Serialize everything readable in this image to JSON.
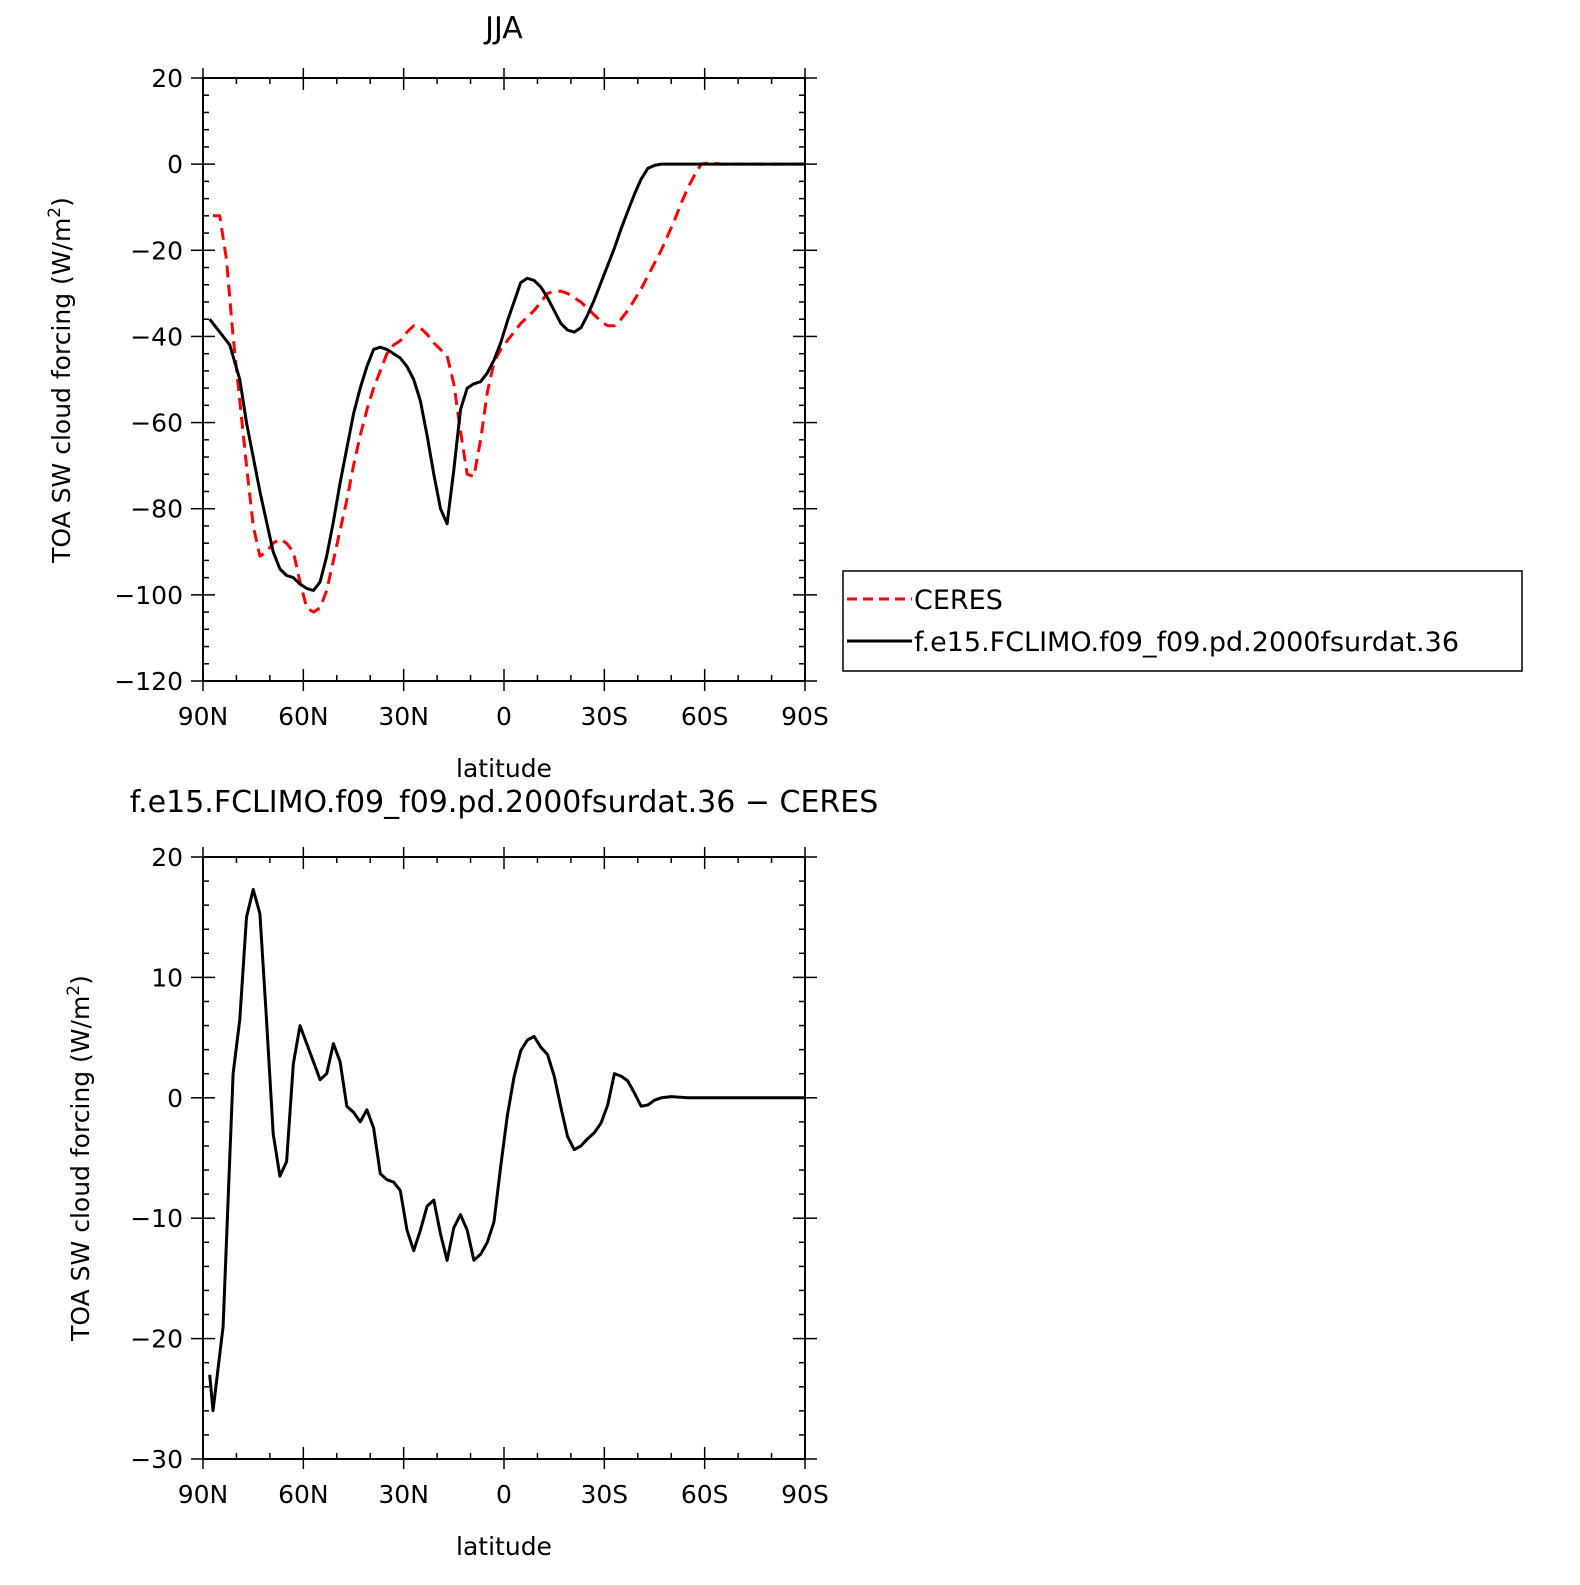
{
  "chart_data": [
    {
      "type": "line",
      "title": "JJA",
      "xlabel": "latitude",
      "ylabel": "TOA SW cloud forcing (W/m²)",
      "ylabel_main": "TOA SW cloud forcing (W/m",
      "ylabel_sup": "2",
      "ylabel_end": ")",
      "xlim": [
        90,
        -90
      ],
      "ylim": [
        -120,
        20
      ],
      "x_ticks": [
        90,
        60,
        30,
        0,
        -30,
        -60,
        -90
      ],
      "x_tick_labels": [
        "90N",
        "60N",
        "30N",
        "0",
        "30S",
        "60S",
        "90S"
      ],
      "y_ticks": [
        20,
        0,
        -20,
        -40,
        -60,
        -80,
        -100,
        -120
      ],
      "y_tick_labels": [
        "20",
        "0",
        "−20",
        "−40",
        "−60",
        "−80",
        "−100",
        "−120"
      ],
      "legend_position": "right",
      "series": [
        {
          "name": "CERES",
          "style": "dashed",
          "color": "#ff0000",
          "points": [
            [
              87,
              -12
            ],
            [
              85,
              -12
            ],
            [
              83,
              -22
            ],
            [
              81,
              -40
            ],
            [
              79,
              -55
            ],
            [
              77,
              -70
            ],
            [
              75,
              -84
            ],
            [
              73,
              -91
            ],
            [
              71,
              -90
            ],
            [
              69,
              -88
            ],
            [
              67,
              -87
            ],
            [
              65,
              -88
            ],
            [
              63,
              -90
            ],
            [
              61,
              -97
            ],
            [
              59,
              -103
            ],
            [
              57,
              -104
            ],
            [
              55,
              -103
            ],
            [
              53,
              -99
            ],
            [
              51,
              -92
            ],
            [
              49,
              -85
            ],
            [
              47,
              -78
            ],
            [
              45,
              -70
            ],
            [
              43,
              -63
            ],
            [
              41,
              -57
            ],
            [
              39,
              -52
            ],
            [
              37,
              -48
            ],
            [
              35,
              -44
            ],
            [
              33,
              -42
            ],
            [
              31,
              -41
            ],
            [
              29,
              -39
            ],
            [
              27,
              -37.5
            ],
            [
              25,
              -38
            ],
            [
              23,
              -39.5
            ],
            [
              21,
              -41.5
            ],
            [
              19,
              -43
            ],
            [
              17,
              -44.5
            ],
            [
              15,
              -51
            ],
            [
              13,
              -62
            ],
            [
              11,
              -72
            ],
            [
              9,
              -72.5
            ],
            [
              7,
              -64
            ],
            [
              5,
              -53
            ],
            [
              3,
              -46
            ],
            [
              1,
              -43
            ],
            [
              -1,
              -41
            ],
            [
              -3,
              -39
            ],
            [
              -5,
              -37
            ],
            [
              -7,
              -35.5
            ],
            [
              -9,
              -34
            ],
            [
              -11,
              -32
            ],
            [
              -13,
              -30
            ],
            [
              -15,
              -29.5
            ],
            [
              -17,
              -29.5
            ],
            [
              -19,
              -30
            ],
            [
              -21,
              -31
            ],
            [
              -23,
              -32
            ],
            [
              -25,
              -33.5
            ],
            [
              -27,
              -35
            ],
            [
              -29,
              -36.5
            ],
            [
              -31,
              -37.5
            ],
            [
              -33,
              -37.5
            ],
            [
              -35,
              -36
            ],
            [
              -37,
              -34
            ],
            [
              -39,
              -31.5
            ],
            [
              -41,
              -29
            ],
            [
              -43,
              -26
            ],
            [
              -45,
              -23
            ],
            [
              -47,
              -20
            ],
            [
              -49,
              -16.5
            ],
            [
              -51,
              -13
            ],
            [
              -53,
              -9
            ],
            [
              -55,
              -5.5
            ],
            [
              -57,
              -2.5
            ],
            [
              -59,
              0
            ],
            [
              -61,
              0.3
            ],
            [
              -63,
              0.2
            ],
            [
              -65,
              0
            ],
            [
              -70,
              0
            ],
            [
              -75,
              0
            ],
            [
              -80,
              0
            ],
            [
              -85,
              0
            ],
            [
              -90,
              0
            ]
          ]
        },
        {
          "name": "f.e15.FCLIMO.f09_f09.pd.2000fsurdat.36",
          "style": "solid",
          "color": "#000000",
          "points": [
            [
              88,
              -36
            ],
            [
              85,
              -39
            ],
            [
              82,
              -42
            ],
            [
              79,
              -50
            ],
            [
              77,
              -60
            ],
            [
              75,
              -68
            ],
            [
              73,
              -76
            ],
            [
              71,
              -83
            ],
            [
              69,
              -90
            ],
            [
              67,
              -94
            ],
            [
              65,
              -95.5
            ],
            [
              63,
              -96
            ],
            [
              61,
              -97.5
            ],
            [
              59,
              -98.5
            ],
            [
              57,
              -99
            ],
            [
              55,
              -97
            ],
            [
              53,
              -91
            ],
            [
              51,
              -83
            ],
            [
              49,
              -74
            ],
            [
              47,
              -66
            ],
            [
              45,
              -58
            ],
            [
              43,
              -52
            ],
            [
              41,
              -47
            ],
            [
              39,
              -43
            ],
            [
              37,
              -42.5
            ],
            [
              35,
              -43
            ],
            [
              33,
              -44
            ],
            [
              31,
              -45
            ],
            [
              29,
              -47
            ],
            [
              27,
              -50
            ],
            [
              25,
              -55
            ],
            [
              23,
              -63
            ],
            [
              21,
              -72
            ],
            [
              19,
              -80
            ],
            [
              17,
              -83.5
            ],
            [
              15,
              -71
            ],
            [
              13,
              -57
            ],
            [
              11,
              -52
            ],
            [
              9,
              -51
            ],
            [
              7,
              -50.5
            ],
            [
              5,
              -48.5
            ],
            [
              3,
              -45.5
            ],
            [
              1,
              -41.5
            ],
            [
              -1,
              -36.5
            ],
            [
              -3,
              -32
            ],
            [
              -5,
              -27.5
            ],
            [
              -7,
              -26.5
            ],
            [
              -9,
              -27
            ],
            [
              -11,
              -28.5
            ],
            [
              -13,
              -31
            ],
            [
              -15,
              -34
            ],
            [
              -17,
              -37
            ],
            [
              -19,
              -38.5
            ],
            [
              -21,
              -39
            ],
            [
              -23,
              -38
            ],
            [
              -25,
              -35
            ],
            [
              -27,
              -31.5
            ],
            [
              -29,
              -27.5
            ],
            [
              -31,
              -23.5
            ],
            [
              -33,
              -19.5
            ],
            [
              -35,
              -15
            ],
            [
              -37,
              -11
            ],
            [
              -39,
              -7
            ],
            [
              -41,
              -3.5
            ],
            [
              -43,
              -1
            ],
            [
              -45,
              -0.3
            ],
            [
              -47,
              0
            ],
            [
              -50,
              0
            ],
            [
              -55,
              0
            ],
            [
              -60,
              0
            ],
            [
              -65,
              0
            ],
            [
              -70,
              0
            ],
            [
              -75,
              0
            ],
            [
              -80,
              0
            ],
            [
              -85,
              0
            ],
            [
              -90,
              0
            ]
          ]
        }
      ]
    },
    {
      "type": "line",
      "title": "f.e15.FCLIMO.f09_f09.pd.2000fsurdat.36 − CERES",
      "xlabel": "latitude",
      "ylabel": "TOA SW cloud forcing (W/m²)",
      "ylabel_main": "TOA SW cloud forcing (W/m",
      "ylabel_sup": "2",
      "ylabel_end": ")",
      "xlim": [
        90,
        -90
      ],
      "ylim": [
        -30,
        20
      ],
      "x_ticks": [
        90,
        60,
        30,
        0,
        -30,
        -60,
        -90
      ],
      "x_tick_labels": [
        "90N",
        "60N",
        "30N",
        "0",
        "30S",
        "60S",
        "90S"
      ],
      "y_ticks": [
        20,
        10,
        0,
        -10,
        -20,
        -30
      ],
      "y_tick_labels": [
        "20",
        "10",
        "0",
        "−10",
        "−20",
        "−30"
      ],
      "series": [
        {
          "style": "solid",
          "color": "#000000",
          "points": [
            [
              88,
              -23
            ],
            [
              87,
              -26
            ],
            [
              84,
              -19
            ],
            [
              81,
              2
            ],
            [
              79,
              6.5
            ],
            [
              77,
              15
            ],
            [
              75,
              17.3
            ],
            [
              73,
              15.3
            ],
            [
              71,
              6.5
            ],
            [
              69,
              -3
            ],
            [
              67,
              -6.5
            ],
            [
              65,
              -5.3
            ],
            [
              63,
              2.8
            ],
            [
              61,
              6
            ],
            [
              59,
              4.5
            ],
            [
              57,
              3
            ],
            [
              55,
              1.5
            ],
            [
              53,
              2
            ],
            [
              51,
              4.5
            ],
            [
              49,
              3
            ],
            [
              47,
              -0.7
            ],
            [
              45,
              -1.2
            ],
            [
              43,
              -2
            ],
            [
              41,
              -1
            ],
            [
              39,
              -2.5
            ],
            [
              37,
              -6.3
            ],
            [
              35,
              -6.8
            ],
            [
              33,
              -7
            ],
            [
              31,
              -7.7
            ],
            [
              29,
              -11
            ],
            [
              27,
              -12.7
            ],
            [
              25,
              -11
            ],
            [
              23,
              -9
            ],
            [
              21,
              -8.5
            ],
            [
              19,
              -11.3
            ],
            [
              17,
              -13.5
            ],
            [
              15,
              -10.8
            ],
            [
              13,
              -9.7
            ],
            [
              11,
              -11
            ],
            [
              9,
              -13.5
            ],
            [
              7,
              -13
            ],
            [
              5,
              -12
            ],
            [
              3,
              -10.3
            ],
            [
              1,
              -5.7
            ],
            [
              -1,
              -1.5
            ],
            [
              -3,
              1.7
            ],
            [
              -5,
              3.9
            ],
            [
              -7,
              4.8
            ],
            [
              -9,
              5.1
            ],
            [
              -11,
              4.2
            ],
            [
              -13,
              3.6
            ],
            [
              -15,
              1.8
            ],
            [
              -17,
              -0.8
            ],
            [
              -19,
              -3.2
            ],
            [
              -21,
              -4.3
            ],
            [
              -23,
              -4
            ],
            [
              -25,
              -3.4
            ],
            [
              -27,
              -2.9
            ],
            [
              -29,
              -2.1
            ],
            [
              -31,
              -0.6
            ],
            [
              -33,
              2
            ],
            [
              -35,
              1.8
            ],
            [
              -37,
              1.4
            ],
            [
              -39,
              0.4
            ],
            [
              -41,
              -0.7
            ],
            [
              -43,
              -0.6
            ],
            [
              -45,
              -0.2
            ],
            [
              -47,
              0
            ],
            [
              -50,
              0.1
            ],
            [
              -55,
              0
            ],
            [
              -60,
              0
            ],
            [
              -65,
              0
            ],
            [
              -70,
              0
            ],
            [
              -75,
              0
            ],
            [
              -80,
              0
            ],
            [
              -85,
              0
            ],
            [
              -90,
              0
            ]
          ]
        }
      ]
    }
  ]
}
